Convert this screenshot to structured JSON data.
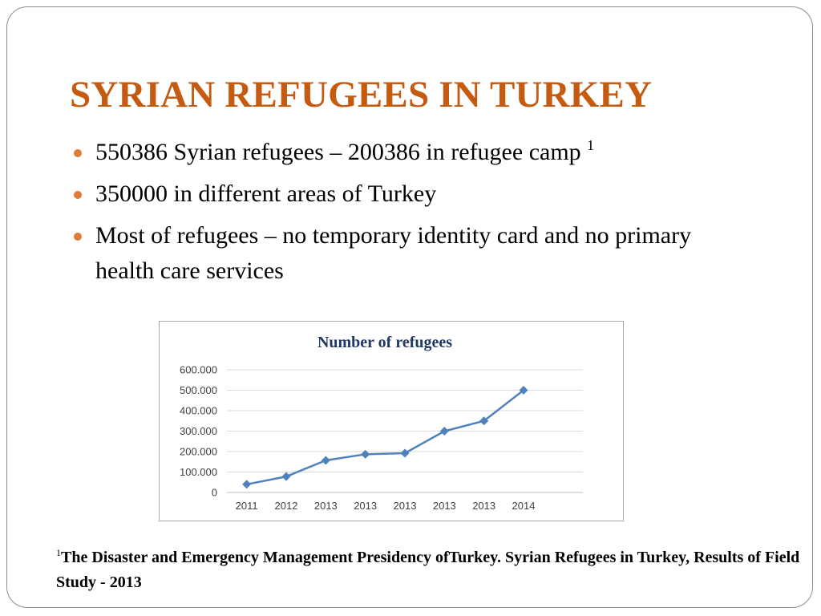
{
  "colors": {
    "title": "#c55a11",
    "bullet": "#e07b39",
    "chart_line": "#4f81bd",
    "chart_title": "#1f3864",
    "grid": "#d9d9d9",
    "tick_text": "#404040"
  },
  "slide": {
    "title": "SYRIAN REFUGEES IN TURKEY",
    "bullets": [
      {
        "text": "550386 Syrian refugees – 200386 in refugee camp ",
        "sup": "1"
      },
      {
        "text": "350000 in different areas of Turkey",
        "sup": ""
      },
      {
        "text": "Most of refugees – no temporary identity card and no primary health care services",
        "sup": ""
      }
    ],
    "footnote": {
      "sup": "1",
      "text": "The Disaster and Emergency Management Presidency ofTurkey. Syrian Refugees in Turkey, Results of  Field Study - 2013"
    }
  },
  "chart_data": {
    "type": "line",
    "title": "Number of refugees",
    "categories": [
      "2011",
      "2012",
      "2013",
      "2013",
      "2013",
      "2013",
      "2013",
      "2014"
    ],
    "series": [
      {
        "values": [
          40000,
          78000,
          157000,
          187000,
          192000,
          300000,
          350000,
          500000
        ]
      }
    ],
    "ylim": [
      0,
      600000
    ],
    "yticks": [
      {
        "value": 0,
        "label": "0"
      },
      {
        "value": 100000,
        "label": "100.000"
      },
      {
        "value": 200000,
        "label": "200.000"
      },
      {
        "value": 300000,
        "label": "300.000"
      },
      {
        "value": 400000,
        "label": "400.000"
      },
      {
        "value": 500000,
        "label": "500.000"
      },
      {
        "value": 600000,
        "label": "600.000"
      }
    ],
    "grid": true,
    "legend": "none",
    "marker": "diamond"
  }
}
